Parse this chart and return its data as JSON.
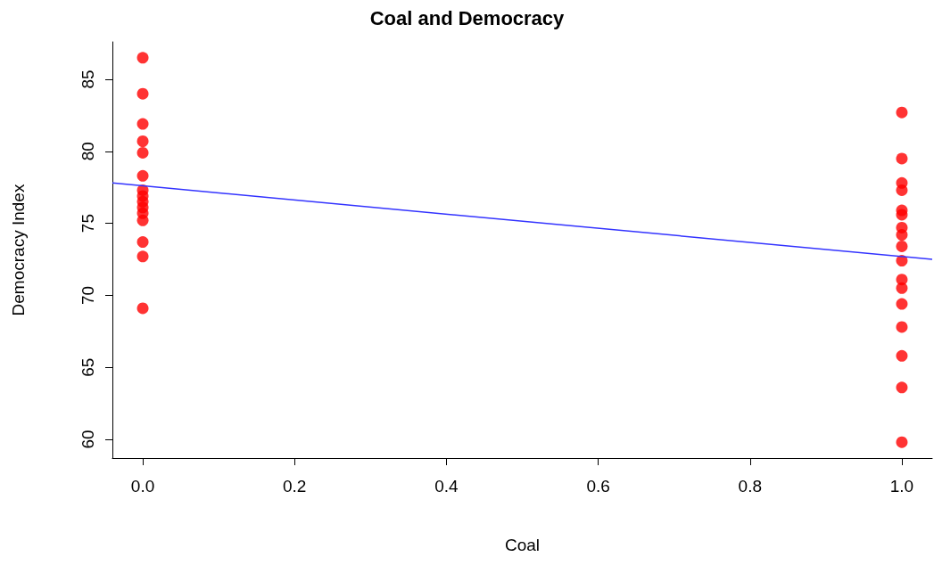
{
  "chart_data": {
    "type": "scatter",
    "title": "Coal and Democracy",
    "xlabel": "Coal",
    "ylabel": "Democracy Index",
    "xlim": [
      -0.04,
      1.04
    ],
    "xticks": [
      {
        "value": 0,
        "label": "0.0"
      },
      {
        "value": 0.2,
        "label": "0.2"
      },
      {
        "value": 0.4,
        "label": "0.4"
      },
      {
        "value": 0.6,
        "label": "0.6"
      },
      {
        "value": 0.8,
        "label": "0.8"
      },
      {
        "value": 1,
        "label": "1.0"
      }
    ],
    "ylim": [
      58.7,
      87.6
    ],
    "yticks": [
      60,
      65,
      70,
      75,
      80,
      85
    ],
    "grid": false,
    "marker": "circle",
    "series": [
      {
        "color": "#ff0000",
        "x": [
          0,
          0,
          0,
          0,
          0,
          0,
          0,
          0,
          0,
          0,
          0,
          0,
          0,
          0,
          0,
          1,
          1,
          1,
          1,
          1,
          1,
          1,
          1,
          1,
          1,
          1,
          1,
          1,
          1,
          1,
          1,
          1
        ],
        "values": [
          86.5,
          84.0,
          81.9,
          80.7,
          79.9,
          78.3,
          77.3,
          76.9,
          76.5,
          76.1,
          75.7,
          75.2,
          73.7,
          72.7,
          69.1,
          82.7,
          79.5,
          77.8,
          77.3,
          75.9,
          75.6,
          74.7,
          74.2,
          73.4,
          72.4,
          71.1,
          70.5,
          69.4,
          67.8,
          65.8,
          63.6,
          59.8
        ]
      },
      {
        "type": "line",
        "color": "#3333ff",
        "x": [
          -0.04,
          1.04
        ],
        "values": [
          77.8,
          72.5
        ],
        "marker": "none",
        "line_style": "solid"
      }
    ]
  }
}
